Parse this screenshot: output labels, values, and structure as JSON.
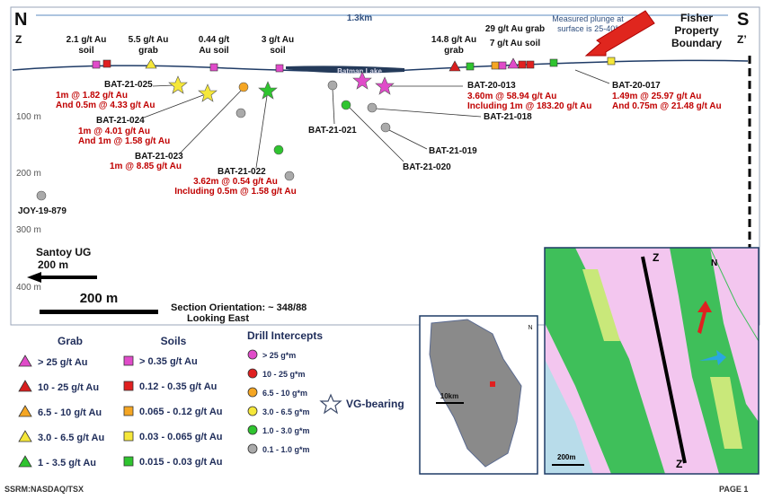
{
  "section": {
    "north": "N",
    "z": "Z",
    "south": "S",
    "z_prime": "Z’",
    "distance": "1.3km",
    "boundary": [
      "Fisher",
      "Property",
      "Boundary"
    ],
    "surface_labels": [
      [
        "2.1 g/t Au",
        "soil"
      ],
      [
        "5.5 g/t Au",
        "grab"
      ],
      [
        "0.44 g/t",
        "Au soil"
      ],
      [
        "3 g/t Au",
        "soil"
      ],
      [
        "14.8 g/t Au",
        "grab"
      ],
      [
        "29 g/t Au grab",
        "7 g/t Au soil"
      ]
    ],
    "plunge": [
      "Measured plunge at",
      "surface is 25-40°"
    ],
    "lake": "Batman Lake",
    "holes": [
      {
        "name": "BAT-21-025",
        "results": [
          "1m @ 1.82 g/t Au",
          "And 0.5m @ 4.33 g/t Au"
        ]
      },
      {
        "name": "BAT-21-024",
        "results": [
          "1m @ 4.01 g/t Au",
          "And 1m @ 1.58 g/t Au"
        ]
      },
      {
        "name": "BAT-21-023",
        "results": [
          "1m @ 8.85 g/t Au"
        ]
      },
      {
        "name": "BAT-21-022",
        "results": [
          "3.62m @ 0.54 g/t Au",
          "Including 0.5m @ 1.58 g/t Au"
        ]
      },
      {
        "name": "BAT-21-021",
        "results": []
      },
      {
        "name": "BAT-20-013",
        "results": [
          "3.60m @ 58.94 g/t Au",
          "Including 1m @ 183.20 g/t Au"
        ]
      },
      {
        "name": "BAT-21-018",
        "results": []
      },
      {
        "name": "BAT-21-019",
        "results": []
      },
      {
        "name": "BAT-21-020",
        "results": []
      },
      {
        "name": "BAT-20-017",
        "results": [
          "1.49m @ 25.97 g/t Au",
          "And 0.75m @ 21.48 g/t Au"
        ]
      }
    ],
    "depths": [
      "100 m",
      "200 m",
      "300 m",
      "400 m"
    ],
    "joy": "JOY-19-879",
    "santoy": [
      "Santoy UG",
      "200 m"
    ],
    "scale": "200 m",
    "orientation": [
      "Section Orientation: ~ 348/88",
      "Looking East"
    ]
  },
  "legend": {
    "grab": {
      "title": "Grab",
      "items": [
        "> 25 g/t Au",
        "10 - 25 g/t Au",
        "6.5 - 10 g/t Au",
        "3.0 - 6.5 g/t Au",
        "1 - 3.5 g/t Au"
      ]
    },
    "soils": {
      "title": "Soils",
      "items": [
        "> 0.35 g/t Au",
        "0.12 - 0.35 g/t Au",
        "0.065 - 0.12 g/t Au",
        "0.03 - 0.065 g/t Au",
        "0.015 - 0.03 g/t Au"
      ]
    },
    "drill": {
      "title": "Drill Intercepts",
      "items": [
        "> 25 g*m",
        "10 - 25 g*m",
        "6.5 - 10 g*m",
        "3.0 - 6.5 g*m",
        "1.0 - 3.0 g*m",
        "0.1 - 1.0 g*m"
      ]
    },
    "vg": "VG-bearing"
  },
  "inset": {
    "scale": "10km",
    "north": "N"
  },
  "geology_map": {
    "z": "Z",
    "z_prime": "Z’",
    "north": "N",
    "scale": "200m"
  },
  "footer": {
    "ticker": "SSRM:NASDAQ/TSX",
    "page": "PAGE 1"
  }
}
